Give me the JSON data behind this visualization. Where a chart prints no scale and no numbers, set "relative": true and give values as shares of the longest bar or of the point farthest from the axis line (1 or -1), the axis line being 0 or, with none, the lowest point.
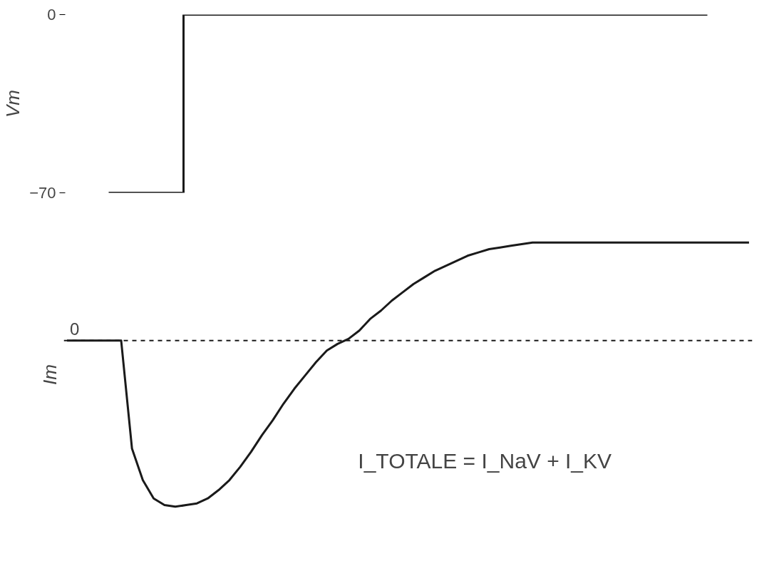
{
  "chart_data": [
    {
      "type": "step",
      "ylabel": "Vm",
      "categories": [
        null,
        null,
        null,
        null,
        null
      ],
      "series": [
        {
          "color": "#1a1a1a",
          "values": [
            -70,
            0,
            0,
            0,
            0
          ]
        }
      ],
      "ylim": [
        -70,
        0
      ],
      "yticks": [
        -70,
        0
      ],
      "grid": false,
      "tick_labels": "y"
    },
    {
      "type": "line",
      "ylabel": "Im",
      "relative": true,
      "annotations": [
        "I_TOTALE = I_NaV + I_KV"
      ],
      "categories": [
        null,
        null,
        null,
        null,
        null,
        null,
        null,
        null,
        null,
        null,
        null,
        null,
        null,
        null,
        null,
        null,
        null,
        null,
        null,
        null,
        null,
        null,
        null,
        null,
        null,
        null,
        null,
        null,
        null,
        null,
        null,
        null,
        null,
        null,
        null,
        null,
        null,
        null,
        null,
        null,
        null,
        null,
        null,
        null,
        null,
        null,
        null,
        null,
        null,
        null,
        null,
        null,
        null,
        null,
        null,
        null,
        null,
        null,
        null,
        null,
        null,
        null,
        null,
        null
      ],
      "series": [
        {
          "color": "#1a1a1a",
          "values": [
            0,
            0,
            0,
            0,
            0,
            0,
            -0.65,
            -0.84,
            -0.95,
            -0.99,
            -1,
            -0.99,
            -0.98,
            -0.95,
            -0.9,
            -0.84,
            -0.76,
            -0.67,
            -0.57,
            -0.48,
            -0.38,
            -0.29,
            -0.21,
            -0.13,
            -0.06,
            -0.02,
            0.01,
            0.06,
            0.13,
            0.18,
            0.24,
            0.29,
            0.34,
            0.38,
            0.42,
            0.45,
            0.48,
            0.51,
            0.53,
            0.55,
            0.56,
            0.57,
            0.58,
            0.59,
            0.59,
            0.59,
            0.59,
            0.59,
            0.59,
            0.59,
            0.59,
            0.59,
            0.59,
            0.59,
            0.59,
            0.59,
            0.59,
            0.59,
            0.59,
            0.59,
            0.59,
            0.59,
            0.59,
            0.59
          ]
        }
      ],
      "ref_lines": [
        {
          "axis": "y",
          "value": 0,
          "label": "0",
          "line_style": "dashed",
          "color": "#1a1a1a"
        }
      ],
      "grid": false,
      "tick_labels": false
    }
  ]
}
